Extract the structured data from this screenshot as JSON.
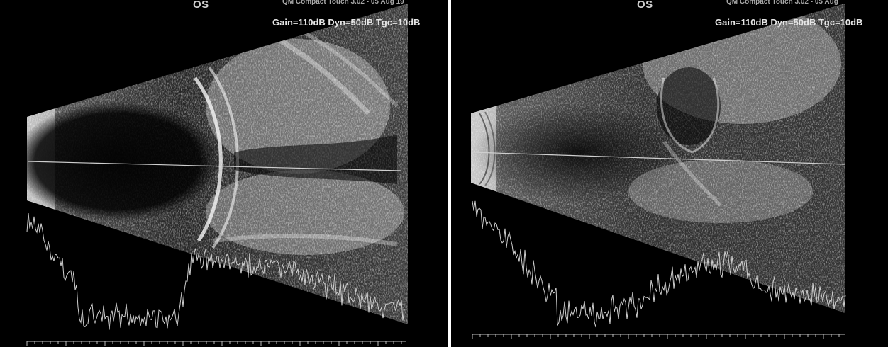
{
  "panels": [
    {
      "eye": "OS",
      "device": "QM Compact Touch 3.02 - 05 Aug 19",
      "settings": "Gain=110dB Dyn=50dB Tgc=10dB"
    },
    {
      "eye": "OS",
      "device": "QM Compact Touch 3.02 - 05 Aug",
      "settings": "Gain=110dB Dyn=50dB Tgc=10dB"
    }
  ],
  "colors": {
    "background": "#000000",
    "echo": "#e8e8e8",
    "text": "#e6e6e6"
  }
}
